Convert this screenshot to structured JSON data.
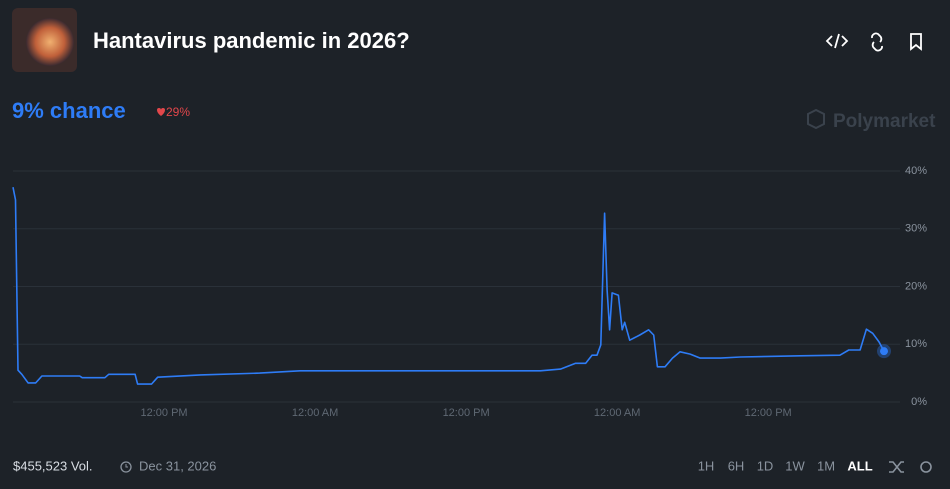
{
  "header": {
    "title": "Hantavirus pandemic in 2026?"
  },
  "odds": {
    "chance": "9% chance",
    "change": "29%"
  },
  "brand": "Polymarket",
  "footer": {
    "volume": "$455,523 Vol.",
    "end_date": "Dec 31, 2026",
    "timeframes": [
      "1H",
      "6H",
      "1D",
      "1W",
      "1M",
      "ALL"
    ],
    "active_timeframe": 5
  },
  "chart_data": {
    "type": "line",
    "color": "#2e7cf6",
    "grid": true,
    "x": [
      0,
      0.2,
      0.4,
      0.7,
      1.2,
      1.8,
      2.3,
      5.3,
      5.5,
      7.3,
      7.6,
      9.7,
      9.9,
      11.0,
      11.5,
      14.9,
      19.6,
      22.8,
      41.9,
      43.5,
      44.7,
      45.5,
      46.0,
      46.4,
      46.7,
      47.0,
      47.2,
      47.4,
      47.6,
      48.1,
      48.4,
      48.6,
      49.0,
      49.8,
      50.5,
      50.9,
      51.2,
      51.8,
      52.4,
      53.0,
      53.8,
      54.6,
      56.2,
      57.8,
      62.5,
      65.7,
      66.4,
      67.3,
      67.8,
      68.3,
      68.8,
      69.2
    ],
    "values": [
      37.2,
      35,
      5.5,
      4.8,
      3.3,
      3.3,
      4.5,
      4.5,
      4.2,
      4.2,
      4.8,
      4.8,
      3.1,
      3.1,
      4.3,
      4.7,
      5.0,
      5.4,
      5.4,
      5.7,
      6.7,
      6.7,
      8.1,
      8.1,
      9.9,
      32.7,
      19.4,
      12.5,
      18.9,
      18.5,
      12.5,
      13.8,
      10.7,
      11.6,
      12.5,
      11.6,
      6.1,
      6.1,
      7.6,
      8.7,
      8.3,
      7.6,
      7.6,
      7.8,
      8.0,
      8.1,
      9.0,
      9.0,
      12.6,
      11.9,
      10.4,
      8.8
    ],
    "xlim": [
      0,
      69.2
    ],
    "xticks": [
      {
        "value": 12,
        "label": "12:00 PM"
      },
      {
        "value": 24,
        "label": "12:00 AM"
      },
      {
        "value": 36,
        "label": "12:00 PM"
      },
      {
        "value": 48,
        "label": "12:00 AM"
      },
      {
        "value": 60,
        "label": "12:00 PM"
      }
    ],
    "ylim": [
      0,
      40
    ],
    "yticks": [
      {
        "value": 0,
        "label": "0%"
      },
      {
        "value": 10,
        "label": "10%"
      },
      {
        "value": 20,
        "label": "20%"
      },
      {
        "value": 30,
        "label": "30%"
      },
      {
        "value": 40,
        "label": "40%"
      }
    ]
  }
}
